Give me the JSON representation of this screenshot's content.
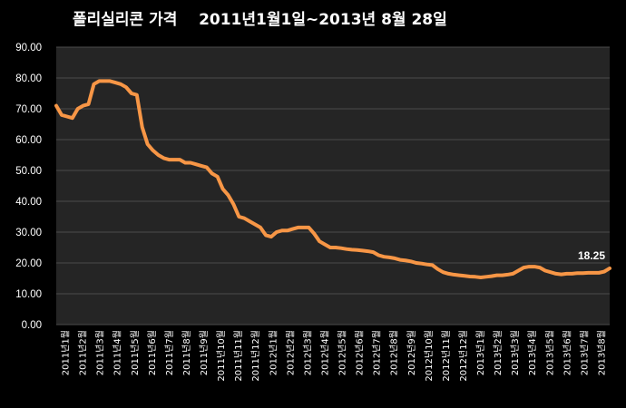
{
  "chart_data": {
    "type": "line",
    "title": "폴리실리콘 가격    2011년1월1일~2013년 8월 28일",
    "ylim": [
      0,
      90
    ],
    "yticks": [
      "0.00",
      "10.00",
      "20.00",
      "30.00",
      "40.00",
      "50.00",
      "60.00",
      "70.00",
      "80.00",
      "90.00"
    ],
    "grid": true,
    "legend": "none",
    "background_color": "#000000",
    "plot_background_color": "#252525",
    "grid_color": "#4a4a4a",
    "line_color": "#f79646",
    "x_tick_labels": [
      "2011년1월",
      "2011년2월",
      "2011년3월",
      "2011년4월",
      "2011년5월",
      "2011년6월",
      "2011년7월",
      "2011년8월",
      "2011년9월",
      "2011년10월",
      "2011년11월",
      "2011년12월",
      "2012년1월",
      "2012년2월",
      "2012년3월",
      "2012년4월",
      "2012년5월",
      "2012년6월",
      "2012년7월",
      "2012년8월",
      "2012년9월",
      "2012년10월",
      "2012년11월",
      "2012년12월",
      "2013년1월",
      "2013년2월",
      "2013년3월",
      "2013년4월",
      "2013년5월",
      "2013년6월",
      "2013년7월",
      "2013년8월"
    ],
    "annotation": "18.25",
    "values": [
      71.0,
      68.0,
      67.5,
      67.0,
      70.0,
      71.0,
      71.5,
      78.0,
      79.0,
      79.0,
      79.0,
      78.5,
      78.0,
      77.0,
      75.0,
      74.5,
      64.0,
      58.5,
      56.5,
      55.0,
      54.0,
      53.5,
      53.5,
      53.5,
      52.5,
      52.5,
      52.0,
      51.5,
      51.0,
      49.0,
      48.0,
      44.0,
      42.0,
      39.0,
      35.0,
      34.5,
      33.5,
      32.5,
      31.5,
      29.0,
      28.5,
      30.0,
      30.5,
      30.5,
      31.0,
      31.5,
      31.5,
      31.5,
      29.5,
      27.0,
      26.0,
      25.0,
      25.0,
      24.8,
      24.5,
      24.3,
      24.2,
      24.0,
      23.8,
      23.5,
      22.5,
      22.0,
      21.8,
      21.5,
      21.0,
      20.8,
      20.5,
      20.0,
      19.8,
      19.5,
      19.3,
      18.0,
      17.0,
      16.5,
      16.2,
      16.0,
      15.8,
      15.6,
      15.5,
      15.3,
      15.5,
      15.7,
      16.0,
      16.0,
      16.2,
      16.5,
      17.5,
      18.5,
      18.8,
      18.8,
      18.5,
      17.5,
      17.0,
      16.5,
      16.3,
      16.5,
      16.5,
      16.7,
      16.7,
      16.8,
      16.8,
      16.8,
      17.2,
      18.25
    ]
  }
}
